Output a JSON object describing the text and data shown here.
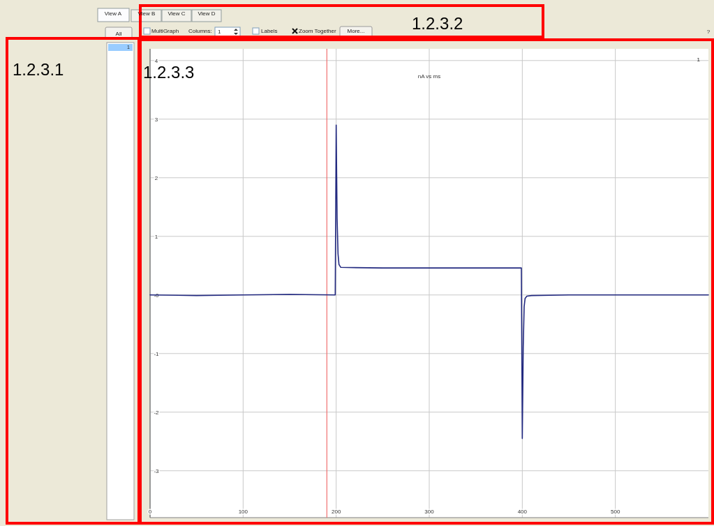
{
  "chart_data": {
    "type": "line",
    "title": "nA vs ms",
    "x": [
      0,
      50,
      100,
      150,
      198,
      199,
      200,
      201,
      202,
      203,
      205,
      250,
      300,
      350,
      398,
      399,
      400,
      401,
      402,
      403,
      405,
      410,
      450,
      500,
      550,
      600
    ],
    "series": [
      {
        "color": "#232a80",
        "values": [
          0,
          -0.01,
          0,
          0.01,
          0,
          0,
          2.9,
          1.3,
          0.7,
          0.52,
          0.47,
          0.46,
          0.46,
          0.46,
          0.46,
          0.46,
          -2.45,
          -0.9,
          -0.2,
          -0.06,
          -0.02,
          -0.01,
          0,
          0,
          0,
          0
        ]
      }
    ],
    "xlim": [
      0,
      600
    ],
    "xticks": [
      0,
      100,
      200,
      300,
      400,
      500
    ],
    "ylim": [
      -3.8,
      4.2
    ],
    "yticks": [
      -3,
      -2,
      -1,
      {
        "value": 0,
        "label": "-0"
      },
      1,
      2,
      3,
      4
    ],
    "grid": true,
    "line_style": "solid",
    "marker": "none",
    "ref_lines": [
      {
        "axis": "x",
        "value": 190,
        "color": "#f07070"
      }
    ],
    "annotations": [
      "View A",
      "View B",
      "View C",
      "View D",
      "MultiGraph",
      "Columns:",
      "1",
      "Labels",
      "Zoom Together",
      "More...",
      "?",
      "All",
      "1",
      "1",
      "1.2.3.1",
      "1.2.3.2",
      "1.2.3.3"
    ]
  }
}
